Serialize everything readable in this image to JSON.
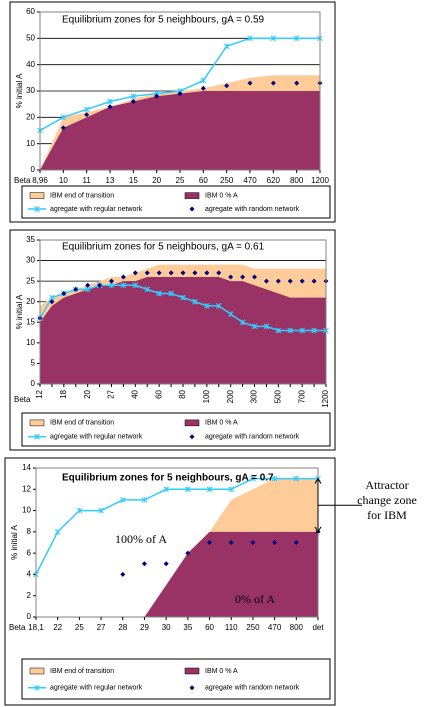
{
  "chart_data": [
    {
      "type": "combo",
      "title": "Equilibrium zones for 5 neighbours, gA = 0.59",
      "xlabel": "Beta",
      "ylabel": "% initial A",
      "categories": [
        "8,96",
        "10",
        "11",
        "13",
        "15",
        "20",
        "25",
        "60",
        "250",
        "470",
        "620",
        "800",
        "1200"
      ],
      "ylim": [
        0,
        60
      ],
      "yticks": [
        0,
        10,
        20,
        30,
        40,
        50,
        60
      ],
      "grid": true,
      "series": [
        {
          "name": "IBM end of transition",
          "kind": "area",
          "color": "#ffcc99",
          "values": [
            0,
            20,
            22,
            24,
            27,
            29,
            30,
            31,
            33,
            35,
            36,
            36,
            36
          ]
        },
        {
          "name": "IBM 0 % A",
          "kind": "area",
          "color": "#993366",
          "values": [
            0,
            16,
            20,
            24,
            26,
            28,
            29,
            30,
            30,
            30,
            30,
            30,
            30
          ]
        },
        {
          "name": "agregate with regular network",
          "kind": "line",
          "color": "#33ccff",
          "values": [
            15,
            20,
            23,
            26,
            28,
            29,
            30,
            34,
            47,
            50,
            50,
            50,
            50
          ]
        },
        {
          "name": "agregate with random network",
          "kind": "scatter",
          "color": "#000080",
          "values": [
            null,
            16,
            21,
            24,
            26,
            28,
            29,
            31,
            32,
            33,
            33,
            33,
            33
          ]
        }
      ]
    },
    {
      "type": "combo",
      "title": "Equilibrium zones for 5 neighbours, gA = 0.61",
      "xlabel": "Beta",
      "ylabel": "% initial A",
      "categories": [
        "12",
        null,
        "18",
        null,
        "20",
        null,
        "27",
        null,
        "40",
        null,
        "60",
        null,
        "80",
        null,
        "100",
        null,
        "200",
        null,
        "300",
        null,
        "500",
        null,
        "700",
        null,
        "1200"
      ],
      "ylim": [
        0,
        35
      ],
      "yticks": [
        0,
        5,
        10,
        15,
        20,
        25,
        30,
        35
      ],
      "grid": true,
      "series": [
        {
          "name": "IBM end of transition",
          "kind": "area",
          "color": "#ffcc99",
          "values": [
            19,
            21,
            22,
            23,
            24,
            25,
            26,
            26,
            27,
            28,
            29,
            29,
            29,
            29,
            29,
            29,
            29,
            29,
            28,
            28,
            28,
            28,
            28,
            28,
            28
          ]
        },
        {
          "name": "IBM 0 % A",
          "kind": "area",
          "color": "#993366",
          "values": [
            15,
            19,
            21,
            22,
            23,
            24,
            24,
            25,
            25,
            26,
            26,
            26,
            26,
            26,
            26,
            26,
            25,
            25,
            24,
            23,
            22,
            21,
            21,
            21,
            21
          ]
        },
        {
          "name": "agregate with regular network",
          "kind": "line",
          "color": "#33ccff",
          "values": [
            16,
            21,
            22,
            23,
            23,
            24,
            24,
            24,
            24,
            23,
            22,
            22,
            21,
            20,
            19,
            19,
            17,
            15,
            14,
            14,
            13,
            13,
            13,
            13,
            13
          ]
        },
        {
          "name": "agregate with random network",
          "kind": "scatter",
          "color": "#000080",
          "values": [
            16,
            20,
            22,
            23,
            24,
            24,
            25,
            26,
            27,
            27,
            27,
            27,
            27,
            27,
            27,
            27,
            26,
            26,
            26,
            25,
            25,
            25,
            25,
            25,
            25
          ]
        }
      ]
    },
    {
      "type": "combo",
      "title": "Equilibrium zones for 5 neighbours, gA = 0.7",
      "xlabel": "Beta",
      "ylabel": "% initial A",
      "categories": [
        "18,1",
        "22",
        "25",
        "27",
        "28",
        "29",
        "30",
        "35",
        "60",
        "110",
        "250",
        "470",
        "800",
        "det"
      ],
      "ylim": [
        0,
        14
      ],
      "yticks": [
        0,
        2,
        4,
        6,
        8,
        10,
        12,
        14
      ],
      "grid": false,
      "annotations": [
        "100% of A",
        "0% of A"
      ],
      "side_note": "Attractor change zone for IBM",
      "series": [
        {
          "name": "IBM end of transition",
          "kind": "area",
          "color": "#ffcc99",
          "values": [
            null,
            null,
            null,
            null,
            null,
            0,
            3,
            6,
            8,
            11,
            12,
            13,
            13,
            13
          ]
        },
        {
          "name": "IBM 0 % A",
          "kind": "area",
          "color": "#993366",
          "values": [
            null,
            null,
            null,
            null,
            null,
            0,
            3,
            6,
            8,
            8,
            8,
            8,
            8,
            8
          ]
        },
        {
          "name": "agregate with regular network",
          "kind": "line",
          "color": "#33ccff",
          "values": [
            4,
            8,
            10,
            10,
            11,
            11,
            12,
            12,
            12,
            12,
            13,
            13,
            13,
            13
          ]
        },
        {
          "name": "agregate with random network",
          "kind": "scatter",
          "color": "#000080",
          "values": [
            null,
            null,
            null,
            null,
            4,
            5,
            5,
            6,
            7,
            7,
            7,
            7,
            7,
            8
          ]
        }
      ]
    }
  ]
}
